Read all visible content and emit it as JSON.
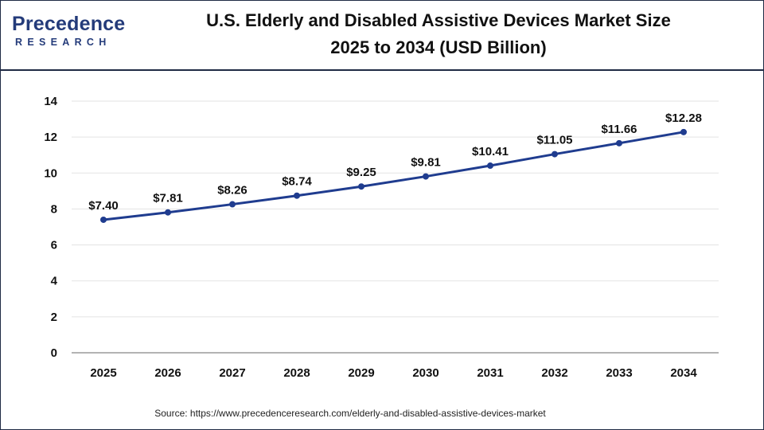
{
  "header": {
    "logo_word": "Precedence",
    "logo_sub": "RESEARCH",
    "title_line1": "U.S. Elderly and Disabled Assistive Devices Market Size",
    "title_line2": "2025 to 2034 (USD Billion)"
  },
  "source": "Source: https://www.precedenceresearch.com/elderly-and-disabled-assistive-devices-market",
  "colors": {
    "line": "#1f3c8f",
    "marker": "#1f3c8f",
    "grid": "#e3e3e3",
    "axis": "#9a9a9a",
    "brand": "#243b7a"
  },
  "chart_data": {
    "type": "line",
    "title": "U.S. Elderly and Disabled Assistive Devices Market Size 2025 to 2034 (USD Billion)",
    "xlabel": "",
    "ylabel": "",
    "ylim": [
      0,
      14
    ],
    "yticks": [
      0,
      2,
      4,
      6,
      8,
      10,
      12,
      14
    ],
    "grid": true,
    "categories": [
      "2025",
      "2026",
      "2027",
      "2028",
      "2029",
      "2030",
      "2031",
      "2032",
      "2033",
      "2034"
    ],
    "series": [
      {
        "values": [
          7.4,
          7.81,
          8.26,
          8.74,
          9.25,
          9.81,
          10.41,
          11.05,
          11.66,
          12.28
        ],
        "labels": [
          "$7.40",
          "$7.81",
          "$8.26",
          "$8.74",
          "$9.25",
          "$9.81",
          "$10.41",
          "$11.05",
          "$11.66",
          "$12.28"
        ]
      }
    ]
  }
}
